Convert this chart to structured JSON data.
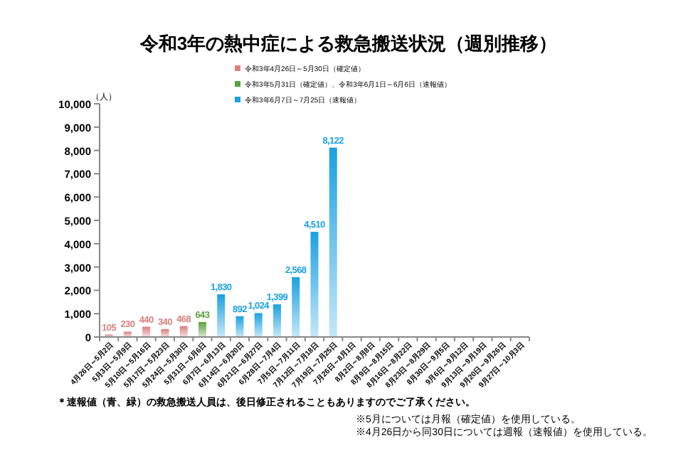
{
  "chart_data": {
    "type": "bar",
    "title": "令和3年の熱中症による救急搬送状況（週別推移）",
    "ylabel": "（人）",
    "categories": [
      "4月26日～5月2日",
      "5月3日～5月9日",
      "5月10日～5月16日",
      "5月17日～5月23日",
      "5月24日～5月30日",
      "5月31日～6月6日",
      "6月7日～6月13日",
      "6月14日～6月20日",
      "6月21日～6月27日",
      "6月28日～7月4日",
      "7月5日～7月11日",
      "7月12日～7月18日",
      "7月19日～7月25日",
      "7月26日～8月1日",
      "8月2日～8月8日",
      "8月9日～8月15日",
      "8月16日～8月22日",
      "8月23日～8月29日",
      "8月30日～9月5日",
      "9月6日～9月12日",
      "9月13日～9月19日",
      "9月20日～9月26日",
      "9月27日～10月3日"
    ],
    "series": [
      {
        "name": "令和3年4月26日～5月30日（確定値）",
        "color": "#d9807f",
        "values": [
          105,
          230,
          440,
          340,
          468,
          null,
          null,
          null,
          null,
          null,
          null,
          null,
          null,
          null,
          null,
          null,
          null,
          null,
          null,
          null,
          null,
          null,
          null
        ],
        "value_labels": [
          "105",
          "230",
          "440",
          "340",
          "468",
          null,
          null,
          null,
          null,
          null,
          null,
          null,
          null,
          null,
          null,
          null,
          null,
          null,
          null,
          null,
          null,
          null,
          null
        ]
      },
      {
        "name": "令和3年5月31日（確定値）、令和3年6月1日～6月6日（速報値）",
        "color": "#5aa03c",
        "values": [
          null,
          null,
          null,
          null,
          null,
          643,
          null,
          null,
          null,
          null,
          null,
          null,
          null,
          null,
          null,
          null,
          null,
          null,
          null,
          null,
          null,
          null,
          null
        ],
        "value_labels": [
          null,
          null,
          null,
          null,
          null,
          "643",
          null,
          null,
          null,
          null,
          null,
          null,
          null,
          null,
          null,
          null,
          null,
          null,
          null,
          null,
          null,
          null,
          null
        ]
      },
      {
        "name": "令和3年6月7日～7月25日（速報値）",
        "color": "#1ba1e2",
        "values": [
          null,
          null,
          null,
          null,
          null,
          null,
          1830,
          892,
          1024,
          1399,
          2568,
          4510,
          8122,
          null,
          null,
          null,
          null,
          null,
          null,
          null,
          null,
          null,
          null
        ],
        "value_labels": [
          null,
          null,
          null,
          null,
          null,
          null,
          "1,830",
          "892",
          "1,024",
          "1,399",
          "2,568",
          "4,510",
          "8,122",
          null,
          null,
          null,
          null,
          null,
          null,
          null,
          null,
          null,
          null
        ]
      }
    ],
    "ylim": [
      0,
      10000
    ],
    "yticks": [
      {
        "value": 0,
        "label": "0"
      },
      {
        "value": 1000,
        "label": "1,000"
      },
      {
        "value": 2000,
        "label": "2,000"
      },
      {
        "value": 3000,
        "label": "3,000"
      },
      {
        "value": 4000,
        "label": "4,000"
      },
      {
        "value": 5000,
        "label": "5,000"
      },
      {
        "value": 6000,
        "label": "6,000"
      },
      {
        "value": 7000,
        "label": "7,000"
      },
      {
        "value": 8000,
        "label": "8,000"
      },
      {
        "value": 9000,
        "label": "9,000"
      },
      {
        "value": 10000,
        "label": "10,000"
      }
    ],
    "legend": "top",
    "grid": false,
    "annotations": [
      "＊速報値（青、緑）の救急搬送人員は、後日修正されることもありますのでご了承ください。",
      "※5月については月報（確定値）を使用している。",
      "※4月26日から同30日については週報（速報値）を使用している。"
    ]
  }
}
